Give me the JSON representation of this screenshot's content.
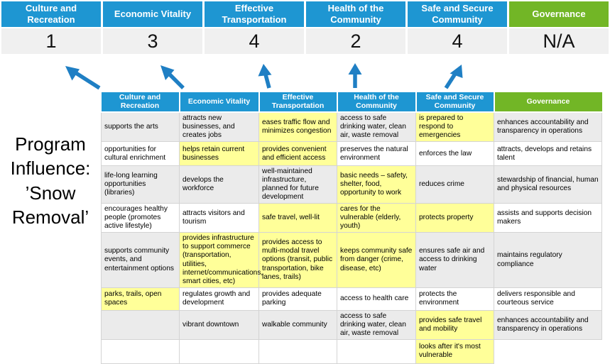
{
  "page_title": "Program Influence: ’Snow Removal’",
  "colors": {
    "header_blue": "#1e96d2",
    "header_green": "#72b626",
    "highlight_yellow": "#ffff99",
    "arrow_blue": "#1f7fc4",
    "score_band_gray": "#f0f0f0",
    "striped_row_gray": "#ebebeb"
  },
  "columns": [
    {
      "label": "Culture and Recreation",
      "score": "1",
      "theme": "blue"
    },
    {
      "label": "Economic Vitality",
      "score": "3",
      "theme": "blue"
    },
    {
      "label": "Effective Transportation",
      "score": "4",
      "theme": "blue"
    },
    {
      "label": "Health of the Community",
      "score": "2",
      "theme": "blue"
    },
    {
      "label": "Safe and Secure Community",
      "score": "4",
      "theme": "blue"
    },
    {
      "label": "Governance",
      "score": "N/A",
      "theme": "green"
    }
  ],
  "matrix_rows": [
    [
      {
        "text": "supports the arts",
        "highlight": false
      },
      {
        "text": "attracts new businesses, and creates jobs",
        "highlight": false
      },
      {
        "text": "eases traffic flow and minimizes congestion",
        "highlight": true
      },
      {
        "text": "access to safe drinking water, clean air, waste removal",
        "highlight": false
      },
      {
        "text": "is prepared to respond to emergencies",
        "highlight": true
      },
      {
        "text": "enhances accountability and transparency in operations",
        "highlight": false
      }
    ],
    [
      {
        "text": "opportunities for cultural enrichment",
        "highlight": false
      },
      {
        "text": "helps retain current businesses",
        "highlight": true
      },
      {
        "text": "provides convenient and efficient access",
        "highlight": true
      },
      {
        "text": "preserves the natural environment",
        "highlight": false
      },
      {
        "text": "enforces the law",
        "highlight": false
      },
      {
        "text": "attracts, develops and retains talent",
        "highlight": false
      }
    ],
    [
      {
        "text": "life-long learning opportunities (libraries)",
        "highlight": false
      },
      {
        "text": "develops the workforce",
        "highlight": false
      },
      {
        "text": "well-maintained infrastructure, planned for future development",
        "highlight": false
      },
      {
        "text": "basic needs – safety, shelter, food, opportunity to work",
        "highlight": true
      },
      {
        "text": "reduces crime",
        "highlight": false
      },
      {
        "text": "stewardship of financial, human and physical resources",
        "highlight": false
      }
    ],
    [
      {
        "text": "encourages healthy people (promotes active lifestyle)",
        "highlight": false
      },
      {
        "text": "attracts visitors and tourism",
        "highlight": false
      },
      {
        "text": "safe travel, well-lit",
        "highlight": true
      },
      {
        "text": "cares for the vulnerable (elderly, youth)",
        "highlight": true
      },
      {
        "text": "protects property",
        "highlight": true
      },
      {
        "text": "assists and supports decision makers",
        "highlight": false
      }
    ],
    [
      {
        "text": "supports community events, and entertainment options",
        "highlight": false
      },
      {
        "text": "provides infrastructure to support commerce (transportation, utilities, internet/communications, smart cities, etc)",
        "highlight": true
      },
      {
        "text": "provides access to multi-modal travel options (transit, public transportation, bike lanes, trails)",
        "highlight": true
      },
      {
        "text": "keeps community safe from danger (crime, disease, etc)",
        "highlight": true
      },
      {
        "text": "ensures safe air and access to drinking water",
        "highlight": false
      },
      {
        "text": "maintains regulatory compliance",
        "highlight": false
      }
    ],
    [
      {
        "text": "parks, trails, open spaces",
        "highlight": true
      },
      {
        "text": "regulates growth and development",
        "highlight": false
      },
      {
        "text": "provides adequate parking",
        "highlight": false
      },
      {
        "text": "access to health care",
        "highlight": false
      },
      {
        "text": "protects the environment",
        "highlight": false
      },
      {
        "text": "delivers responsible and courteous service",
        "highlight": false
      }
    ],
    [
      {
        "text": "",
        "highlight": false
      },
      {
        "text": "vibrant downtown",
        "highlight": false
      },
      {
        "text": "walkable community",
        "highlight": false
      },
      {
        "text": "access to safe drinking water, clean air, waste removal",
        "highlight": false
      },
      {
        "text": "provides safe travel and mobility",
        "highlight": true
      },
      {
        "text": "enhances accountability and transparency in operations",
        "highlight": false
      }
    ],
    [
      {
        "text": "",
        "highlight": false
      },
      {
        "text": "",
        "highlight": false
      },
      {
        "text": "",
        "highlight": false
      },
      {
        "text": "",
        "highlight": false
      },
      {
        "text": "looks after it's most vulnerable",
        "highlight": true
      },
      {
        "text": "",
        "highlight": false,
        "noborder": true
      }
    ]
  ]
}
